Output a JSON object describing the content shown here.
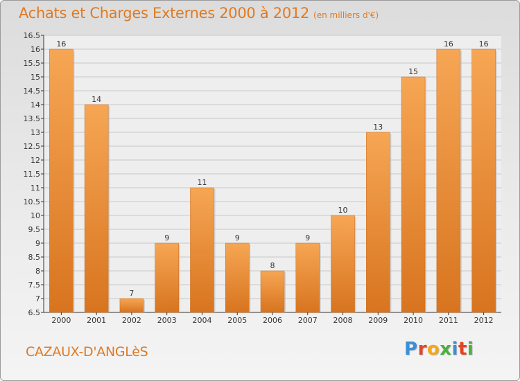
{
  "title": "Achats et Charges Externes 2000 à 2012",
  "unit": "(en milliers d'€)",
  "city": "CAZAUX-D'ANGLèS",
  "logo": {
    "text": "Proxiti",
    "letters": [
      {
        "ch": "P",
        "color": "#3a8fd6"
      },
      {
        "ch": "r",
        "color": "#e0452a"
      },
      {
        "ch": "o",
        "color": "#f2a81d"
      },
      {
        "ch": "x",
        "color": "#4caf3f"
      },
      {
        "ch": "i",
        "color": "#3a8fd6"
      },
      {
        "ch": "t",
        "color": "#e0452a"
      },
      {
        "ch": "i",
        "color": "#4caf3f"
      }
    ]
  },
  "colors": {
    "bar_top": "#f6a654",
    "bar_bottom": "#d8741f",
    "text": "#e07a22",
    "axis": "#333333",
    "grid": "#c8c8c8"
  },
  "chart_data": {
    "type": "bar",
    "categories": [
      "2000",
      "2001",
      "2002",
      "2003",
      "2004",
      "2005",
      "2006",
      "2007",
      "2008",
      "2009",
      "2010",
      "2011",
      "2012"
    ],
    "values": [
      16,
      14,
      7,
      9,
      11,
      9,
      8,
      9,
      10,
      13,
      15,
      16,
      16
    ],
    "data_labels": [
      "16",
      "14",
      "7",
      "9",
      "11",
      "9",
      "8",
      "9",
      "10",
      "13",
      "15",
      "16",
      "16"
    ],
    "yticks": [
      "6.5",
      "7",
      "7.5",
      "8",
      "8.5",
      "9",
      "9.5",
      "10",
      "10.5",
      "11",
      "11.5",
      "12",
      "12.5",
      "13",
      "13.5",
      "14",
      "14.5",
      "15",
      "15.5",
      "16",
      "16.5"
    ],
    "ylim": [
      6.5,
      16.5
    ],
    "grid": true,
    "xlabel": "",
    "ylabel": ""
  }
}
